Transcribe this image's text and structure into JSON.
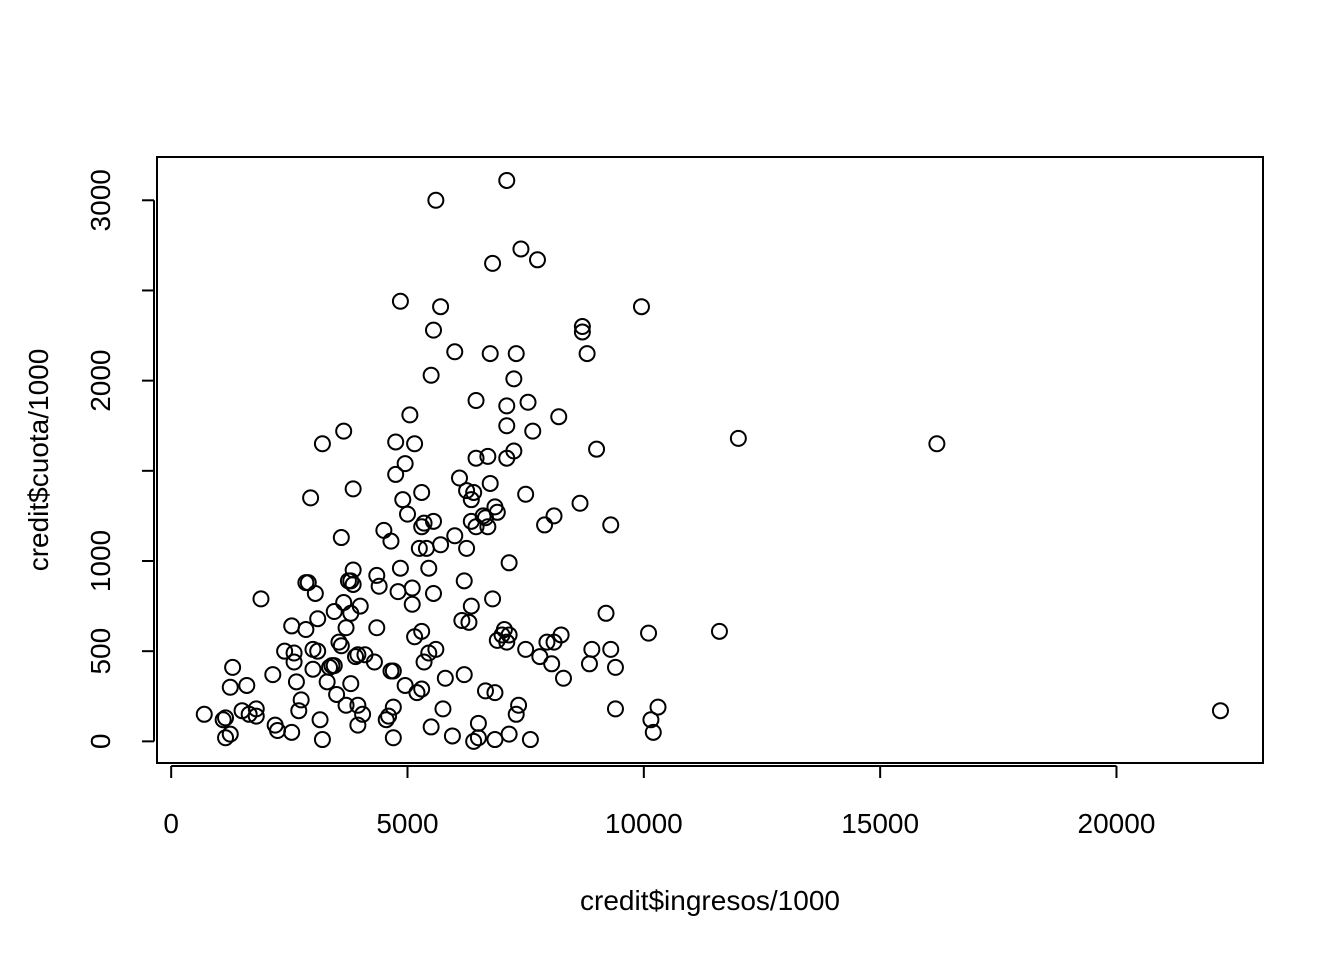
{
  "chart_data": {
    "type": "scatter",
    "xlabel": "credit$ingresos/1000",
    "ylabel": "credit$cuota/1000",
    "xlim": [
      -300,
      23100
    ],
    "ylim": [
      -120,
      3240
    ],
    "x_ticks": [
      0,
      5000,
      10000,
      15000,
      20000
    ],
    "x_tick_labels": [
      "0",
      "5000",
      "10000",
      "15000",
      "20000"
    ],
    "y_ticks": [
      0,
      500,
      1000,
      1500,
      2000,
      2500,
      3000
    ],
    "y_tick_labels": [
      "0",
      "500",
      "1000",
      "",
      "2000",
      "",
      "3000"
    ],
    "points": [
      [
        700,
        150
      ],
      [
        1100,
        120
      ],
      [
        1150,
        130
      ],
      [
        1150,
        20
      ],
      [
        1300,
        410
      ],
      [
        1250,
        300
      ],
      [
        1250,
        40
      ],
      [
        1500,
        170
      ],
      [
        1600,
        310
      ],
      [
        1650,
        150
      ],
      [
        1800,
        180
      ],
      [
        1800,
        140
      ],
      [
        1900,
        790
      ],
      [
        2150,
        370
      ],
      [
        2200,
        90
      ],
      [
        2250,
        60
      ],
      [
        2400,
        500
      ],
      [
        2550,
        640
      ],
      [
        2550,
        50
      ],
      [
        2600,
        440
      ],
      [
        2600,
        490
      ],
      [
        2650,
        330
      ],
      [
        2700,
        170
      ],
      [
        2750,
        230
      ],
      [
        2850,
        880
      ],
      [
        2850,
        620
      ],
      [
        2900,
        880
      ],
      [
        2950,
        1350
      ],
      [
        3000,
        400
      ],
      [
        3000,
        510
      ],
      [
        3050,
        820
      ],
      [
        3100,
        680
      ],
      [
        3100,
        500
      ],
      [
        3150,
        120
      ],
      [
        3200,
        1650
      ],
      [
        3200,
        10
      ],
      [
        3300,
        330
      ],
      [
        3350,
        410
      ],
      [
        3400,
        420
      ],
      [
        3450,
        420
      ],
      [
        3450,
        720
      ],
      [
        3500,
        260
      ],
      [
        3550,
        550
      ],
      [
        3600,
        1130
      ],
      [
        3650,
        1720
      ],
      [
        3600,
        530
      ],
      [
        3700,
        630
      ],
      [
        3650,
        770
      ],
      [
        3700,
        200
      ],
      [
        3800,
        320
      ],
      [
        3750,
        890
      ],
      [
        3800,
        890
      ],
      [
        3800,
        710
      ],
      [
        3850,
        870
      ],
      [
        3850,
        950
      ],
      [
        3850,
        1400
      ],
      [
        3900,
        470
      ],
      [
        3950,
        480
      ],
      [
        3950,
        200
      ],
      [
        3950,
        90
      ],
      [
        4000,
        750
      ],
      [
        4050,
        150
      ],
      [
        4100,
        480
      ],
      [
        4300,
        440
      ],
      [
        4350,
        630
      ],
      [
        4350,
        920
      ],
      [
        4400,
        860
      ],
      [
        4500,
        1170
      ],
      [
        4550,
        120
      ],
      [
        4600,
        140
      ],
      [
        4650,
        1110
      ],
      [
        4650,
        390
      ],
      [
        4700,
        390
      ],
      [
        4700,
        190
      ],
      [
        4700,
        20
      ],
      [
        4750,
        1480
      ],
      [
        4750,
        1660
      ],
      [
        4800,
        830
      ],
      [
        4850,
        960
      ],
      [
        4850,
        2440
      ],
      [
        4900,
        1340
      ],
      [
        4950,
        310
      ],
      [
        4950,
        1540
      ],
      [
        5000,
        1260
      ],
      [
        5050,
        1810
      ],
      [
        5100,
        760
      ],
      [
        5100,
        850
      ],
      [
        5150,
        580
      ],
      [
        5150,
        1650
      ],
      [
        5200,
        270
      ],
      [
        5250,
        1070
      ],
      [
        5300,
        1190
      ],
      [
        5300,
        290
      ],
      [
        5300,
        610
      ],
      [
        5300,
        1380
      ],
      [
        5350,
        1210
      ],
      [
        5350,
        440
      ],
      [
        5400,
        1070
      ],
      [
        5450,
        960
      ],
      [
        5450,
        490
      ],
      [
        5500,
        80
      ],
      [
        5500,
        2030
      ],
      [
        5550,
        1220
      ],
      [
        5550,
        2280
      ],
      [
        5550,
        820
      ],
      [
        5600,
        510
      ],
      [
        5600,
        3000
      ],
      [
        5700,
        1090
      ],
      [
        5700,
        2410
      ],
      [
        5750,
        180
      ],
      [
        5800,
        350
      ],
      [
        5950,
        30
      ],
      [
        6000,
        1140
      ],
      [
        6000,
        2160
      ],
      [
        6100,
        1460
      ],
      [
        6150,
        670
      ],
      [
        6200,
        370
      ],
      [
        6200,
        890
      ],
      [
        6250,
        1390
      ],
      [
        6250,
        1070
      ],
      [
        6300,
        660
      ],
      [
        6350,
        1340
      ],
      [
        6350,
        750
      ],
      [
        6350,
        1220
      ],
      [
        6400,
        1380
      ],
      [
        6400,
        0
      ],
      [
        6450,
        1570
      ],
      [
        6450,
        1190
      ],
      [
        6450,
        1890
      ],
      [
        6500,
        20
      ],
      [
        6500,
        100
      ],
      [
        6600,
        1250
      ],
      [
        6650,
        280
      ],
      [
        6650,
        1240
      ],
      [
        6700,
        1580
      ],
      [
        6700,
        1190
      ],
      [
        6750,
        1430
      ],
      [
        6750,
        2150
      ],
      [
        6800,
        2650
      ],
      [
        6800,
        790
      ],
      [
        6850,
        10
      ],
      [
        6850,
        270
      ],
      [
        6850,
        1300
      ],
      [
        6900,
        1270
      ],
      [
        6900,
        560
      ],
      [
        7000,
        590
      ],
      [
        7050,
        620
      ],
      [
        7100,
        1570
      ],
      [
        7100,
        1860
      ],
      [
        7100,
        1750
      ],
      [
        7100,
        3110
      ],
      [
        7100,
        550
      ],
      [
        7150,
        590
      ],
      [
        7150,
        990
      ],
      [
        7150,
        40
      ],
      [
        7250,
        1610
      ],
      [
        7250,
        2010
      ],
      [
        7300,
        2150
      ],
      [
        7300,
        150
      ],
      [
        7350,
        200
      ],
      [
        7400,
        2730
      ],
      [
        7500,
        1370
      ],
      [
        7500,
        510
      ],
      [
        7550,
        1880
      ],
      [
        7600,
        10
      ],
      [
        7650,
        1720
      ],
      [
        7750,
        2670
      ],
      [
        7800,
        470
      ],
      [
        7900,
        1200
      ],
      [
        7950,
        550
      ],
      [
        8050,
        430
      ],
      [
        8100,
        1250
      ],
      [
        8100,
        550
      ],
      [
        8200,
        1800
      ],
      [
        8250,
        590
      ],
      [
        8300,
        350
      ],
      [
        8650,
        1320
      ],
      [
        8700,
        2300
      ],
      [
        8700,
        2270
      ],
      [
        8800,
        2150
      ],
      [
        8850,
        430
      ],
      [
        8900,
        510
      ],
      [
        9000,
        1620
      ],
      [
        9200,
        710
      ],
      [
        9300,
        510
      ],
      [
        9300,
        1200
      ],
      [
        9400,
        180
      ],
      [
        9400,
        410
      ],
      [
        9950,
        2410
      ],
      [
        10100,
        600
      ],
      [
        10150,
        120
      ],
      [
        10200,
        50
      ],
      [
        10300,
        190
      ],
      [
        11600,
        610
      ],
      [
        12000,
        1680
      ],
      [
        16200,
        1650
      ],
      [
        22200,
        170
      ]
    ]
  }
}
